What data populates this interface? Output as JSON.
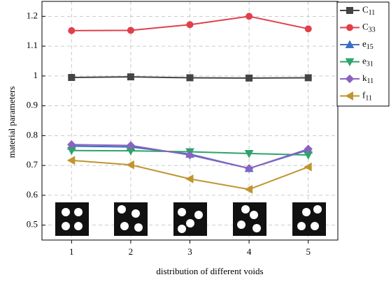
{
  "chart_data": {
    "type": "line",
    "x_label": "distribution of different voids",
    "y_label": "material parameters",
    "x": [
      1,
      2,
      3,
      4,
      5
    ],
    "xlim": [
      0.5,
      5.5
    ],
    "xticks": [
      1,
      2,
      3,
      4,
      5
    ],
    "ylim": [
      0.45,
      1.25
    ],
    "yticks": [
      0.5,
      0.6,
      0.7,
      0.8,
      0.9,
      1.0,
      1.1,
      1.2
    ],
    "grid": true,
    "legend": "right",
    "series": [
      {
        "name": "C11",
        "color": "#444444",
        "marker": "square",
        "values": [
          0.995,
          0.997,
          0.994,
          0.993,
          0.994
        ]
      },
      {
        "name": "C33",
        "color": "#e0404a",
        "marker": "circle",
        "values": [
          1.152,
          1.153,
          1.172,
          1.2,
          1.158
        ]
      },
      {
        "name": "e15",
        "color": "#3a6fc4",
        "marker": "triangle-up",
        "values": [
          0.765,
          0.762,
          0.738,
          0.69,
          0.752
        ]
      },
      {
        "name": "e31",
        "color": "#2ea36b",
        "marker": "triangle-down",
        "values": [
          0.75,
          0.749,
          0.746,
          0.74,
          0.735
        ]
      },
      {
        "name": "k11",
        "color": "#8a63c0",
        "marker": "diamond",
        "values": [
          0.77,
          0.767,
          0.735,
          0.69,
          0.755
        ]
      },
      {
        "name": "f11",
        "color": "#c0952e",
        "marker": "triangle-left",
        "values": [
          0.717,
          0.702,
          0.655,
          0.62,
          0.695
        ]
      }
    ]
  }
}
